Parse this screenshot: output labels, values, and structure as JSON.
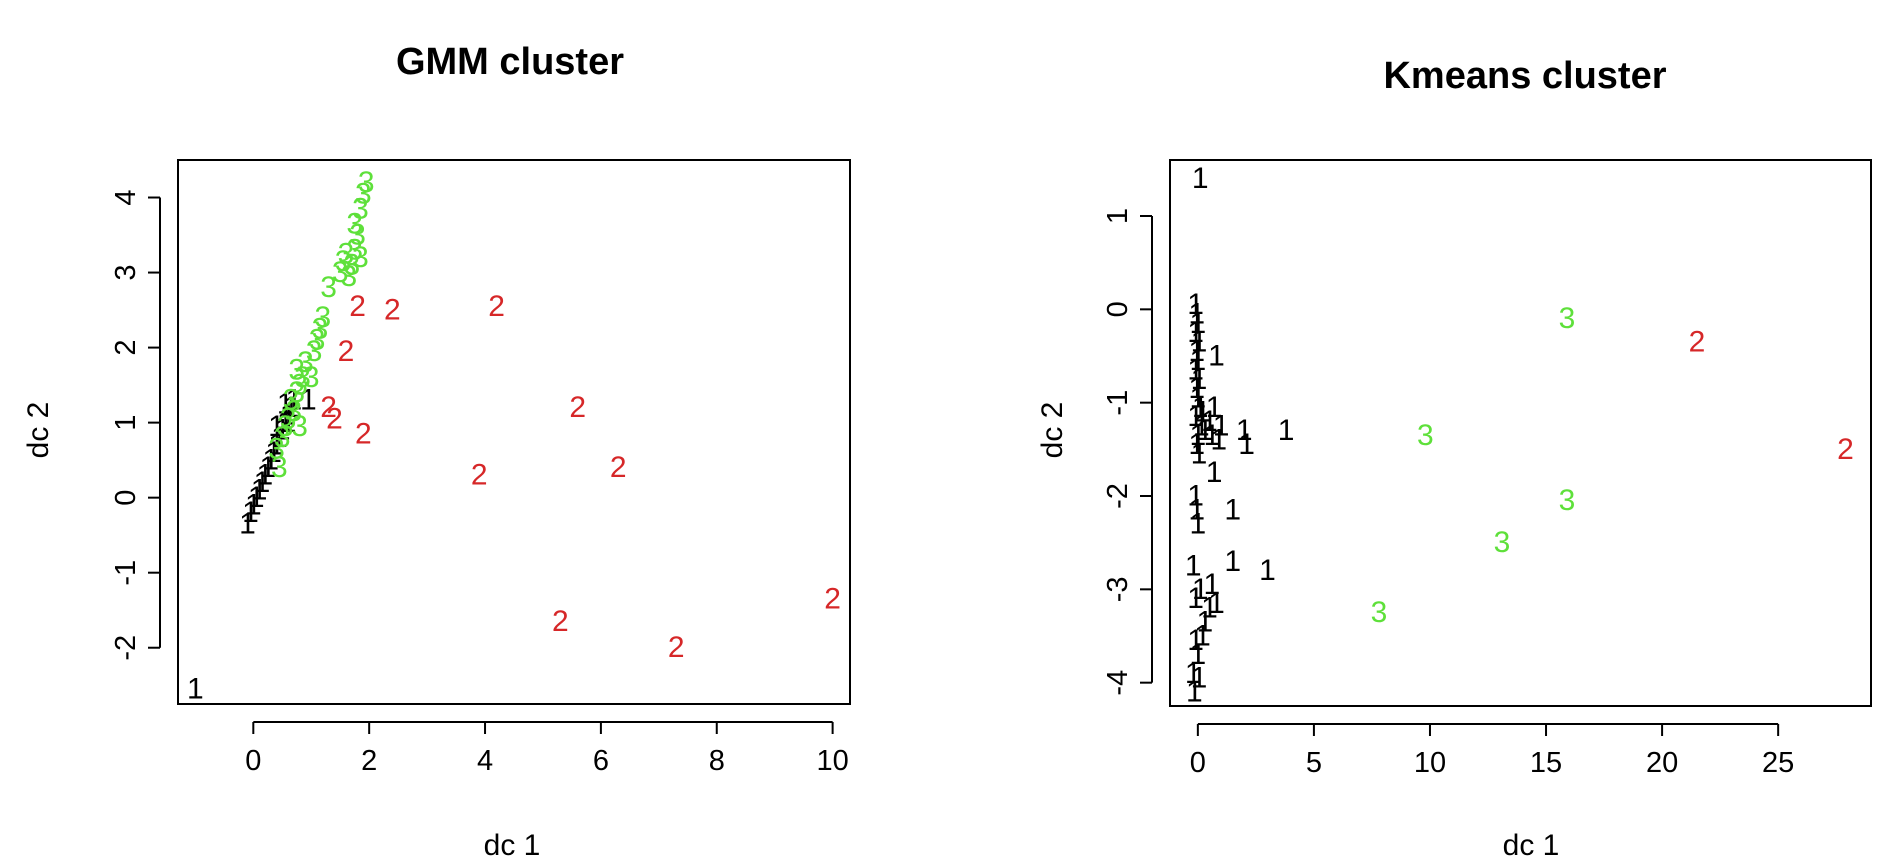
{
  "chart_data": [
    {
      "type": "scatter",
      "title": "GMM cluster",
      "xlabel": "dc 1",
      "ylabel": "dc 2",
      "xlim": [
        -1.3,
        10.3
      ],
      "ylim": [
        -2.75,
        4.5
      ],
      "xticks": [
        0,
        2,
        4,
        6,
        8,
        10
      ],
      "yticks": [
        -2,
        -1,
        0,
        1,
        2,
        3,
        4
      ],
      "colors": {
        "1": "#000000",
        "2": "#d62728",
        "3": "#5ee03a"
      },
      "points": [
        {
          "x": -1.0,
          "y": -2.55,
          "label": "1"
        },
        {
          "x": -0.1,
          "y": -0.35,
          "label": "1"
        },
        {
          "x": -0.05,
          "y": -0.2,
          "label": "1"
        },
        {
          "x": 0.0,
          "y": -0.1,
          "label": "1"
        },
        {
          "x": 0.05,
          "y": 0.0,
          "label": "1"
        },
        {
          "x": 0.1,
          "y": 0.1,
          "label": "1"
        },
        {
          "x": 0.15,
          "y": 0.2,
          "label": "1"
        },
        {
          "x": 0.2,
          "y": 0.3,
          "label": "1"
        },
        {
          "x": 0.25,
          "y": 0.4,
          "label": "1"
        },
        {
          "x": 0.3,
          "y": 0.5,
          "label": "1"
        },
        {
          "x": 0.35,
          "y": 0.6,
          "label": "1"
        },
        {
          "x": 0.4,
          "y": 0.7,
          "label": "1"
        },
        {
          "x": 0.45,
          "y": 0.8,
          "label": "1"
        },
        {
          "x": 0.5,
          "y": 0.9,
          "label": "1"
        },
        {
          "x": 0.55,
          "y": 1.0,
          "label": "1"
        },
        {
          "x": 0.6,
          "y": 1.1,
          "label": "1"
        },
        {
          "x": 0.65,
          "y": 1.2,
          "label": "1"
        },
        {
          "x": 0.7,
          "y": 1.3,
          "label": "1"
        },
        {
          "x": 0.6,
          "y": 1.0,
          "label": "1"
        },
        {
          "x": 0.55,
          "y": 1.25,
          "label": "1"
        },
        {
          "x": 0.4,
          "y": 0.95,
          "label": "1"
        },
        {
          "x": 0.95,
          "y": 1.3,
          "label": "1"
        },
        {
          "x": 0.45,
          "y": 0.4,
          "label": "3"
        },
        {
          "x": 0.4,
          "y": 0.65,
          "label": "3"
        },
        {
          "x": 0.5,
          "y": 0.8,
          "label": "3"
        },
        {
          "x": 0.55,
          "y": 0.95,
          "label": "3"
        },
        {
          "x": 0.6,
          "y": 1.05,
          "label": "3"
        },
        {
          "x": 0.7,
          "y": 1.15,
          "label": "3"
        },
        {
          "x": 0.65,
          "y": 1.3,
          "label": "3"
        },
        {
          "x": 0.75,
          "y": 1.4,
          "label": "3"
        },
        {
          "x": 0.8,
          "y": 1.5,
          "label": "3"
        },
        {
          "x": 0.85,
          "y": 1.6,
          "label": "3"
        },
        {
          "x": 0.75,
          "y": 1.7,
          "label": "3"
        },
        {
          "x": 0.9,
          "y": 1.8,
          "label": "3"
        },
        {
          "x": 0.8,
          "y": 0.95,
          "label": "3"
        },
        {
          "x": 1.0,
          "y": 1.6,
          "label": "3"
        },
        {
          "x": 1.05,
          "y": 1.95,
          "label": "3"
        },
        {
          "x": 1.1,
          "y": 2.1,
          "label": "3"
        },
        {
          "x": 1.15,
          "y": 2.25,
          "label": "3"
        },
        {
          "x": 1.2,
          "y": 2.4,
          "label": "3"
        },
        {
          "x": 1.3,
          "y": 2.8,
          "label": "3"
        },
        {
          "x": 1.5,
          "y": 3.0,
          "label": "3"
        },
        {
          "x": 1.55,
          "y": 3.15,
          "label": "3"
        },
        {
          "x": 1.6,
          "y": 3.25,
          "label": "3"
        },
        {
          "x": 1.7,
          "y": 3.1,
          "label": "3"
        },
        {
          "x": 1.75,
          "y": 3.3,
          "label": "3"
        },
        {
          "x": 1.65,
          "y": 2.95,
          "label": "3"
        },
        {
          "x": 1.8,
          "y": 3.5,
          "label": "3"
        },
        {
          "x": 1.75,
          "y": 3.65,
          "label": "3"
        },
        {
          "x": 1.85,
          "y": 3.85,
          "label": "3"
        },
        {
          "x": 1.9,
          "y": 4.05,
          "label": "3"
        },
        {
          "x": 1.95,
          "y": 4.2,
          "label": "3"
        },
        {
          "x": 1.85,
          "y": 3.2,
          "label": "3"
        },
        {
          "x": 1.8,
          "y": 2.55,
          "label": "2"
        },
        {
          "x": 2.4,
          "y": 2.5,
          "label": "2"
        },
        {
          "x": 4.2,
          "y": 2.55,
          "label": "2"
        },
        {
          "x": 1.6,
          "y": 1.95,
          "label": "2"
        },
        {
          "x": 1.3,
          "y": 1.2,
          "label": "2"
        },
        {
          "x": 1.4,
          "y": 1.05,
          "label": "2"
        },
        {
          "x": 1.9,
          "y": 0.85,
          "label": "2"
        },
        {
          "x": 5.6,
          "y": 1.2,
          "label": "2"
        },
        {
          "x": 3.9,
          "y": 0.3,
          "label": "2"
        },
        {
          "x": 6.3,
          "y": 0.4,
          "label": "2"
        },
        {
          "x": 5.3,
          "y": -1.65,
          "label": "2"
        },
        {
          "x": 7.3,
          "y": -2.0,
          "label": "2"
        },
        {
          "x": 10.0,
          "y": -1.35,
          "label": "2"
        }
      ]
    },
    {
      "type": "scatter",
      "title": "Kmeans cluster",
      "xlabel": "dc 1",
      "ylabel": "dc 2",
      "xlim": [
        -1.2,
        29.0
      ],
      "ylim": [
        -4.25,
        1.6
      ],
      "xticks": [
        0,
        5,
        10,
        15,
        20,
        25
      ],
      "yticks": [
        -4,
        -3,
        -2,
        -1,
        0,
        1
      ],
      "colors": {
        "1": "#000000",
        "2": "#d62728",
        "3": "#5ee03a"
      },
      "points": [
        {
          "x": 0.1,
          "y": 1.4,
          "label": "1"
        },
        {
          "x": -0.1,
          "y": 0.05,
          "label": "1"
        },
        {
          "x": -0.05,
          "y": -0.05,
          "label": "1"
        },
        {
          "x": 0.0,
          "y": -0.15,
          "label": "1"
        },
        {
          "x": -0.1,
          "y": -0.25,
          "label": "1"
        },
        {
          "x": 0.05,
          "y": -0.35,
          "label": "1"
        },
        {
          "x": -0.05,
          "y": -0.45,
          "label": "1"
        },
        {
          "x": 0.0,
          "y": -0.55,
          "label": "1"
        },
        {
          "x": -0.1,
          "y": -0.65,
          "label": "1"
        },
        {
          "x": 0.05,
          "y": -0.75,
          "label": "1"
        },
        {
          "x": -0.05,
          "y": -0.85,
          "label": "1"
        },
        {
          "x": 0.0,
          "y": -0.95,
          "label": "1"
        },
        {
          "x": 0.1,
          "y": -1.05,
          "label": "1"
        },
        {
          "x": -0.1,
          "y": -1.15,
          "label": "1"
        },
        {
          "x": 0.15,
          "y": -1.25,
          "label": "1"
        },
        {
          "x": 0.0,
          "y": -1.35,
          "label": "1"
        },
        {
          "x": -0.05,
          "y": -1.45,
          "label": "1"
        },
        {
          "x": 0.05,
          "y": -1.55,
          "label": "1"
        },
        {
          "x": 0.2,
          "y": -1.1,
          "label": "1"
        },
        {
          "x": 0.3,
          "y": -1.3,
          "label": "1"
        },
        {
          "x": 0.5,
          "y": -1.2,
          "label": "1"
        },
        {
          "x": 0.6,
          "y": -1.35,
          "label": "1"
        },
        {
          "x": 0.7,
          "y": -1.05,
          "label": "1"
        },
        {
          "x": 0.9,
          "y": -1.4,
          "label": "1"
        },
        {
          "x": 1.0,
          "y": -1.25,
          "label": "1"
        },
        {
          "x": 0.8,
          "y": -0.5,
          "label": "1"
        },
        {
          "x": 2.0,
          "y": -1.3,
          "label": "1"
        },
        {
          "x": 2.1,
          "y": -1.45,
          "label": "1"
        },
        {
          "x": 3.8,
          "y": -1.3,
          "label": "1"
        },
        {
          "x": 0.7,
          "y": -1.75,
          "label": "1"
        },
        {
          "x": 1.5,
          "y": -2.15,
          "label": "1"
        },
        {
          "x": -0.1,
          "y": -2.0,
          "label": "1"
        },
        {
          "x": -0.05,
          "y": -2.15,
          "label": "1"
        },
        {
          "x": 0.0,
          "y": -2.3,
          "label": "1"
        },
        {
          "x": 1.5,
          "y": -2.7,
          "label": "1"
        },
        {
          "x": 3.0,
          "y": -2.8,
          "label": "1"
        },
        {
          "x": -0.2,
          "y": -2.75,
          "label": "1"
        },
        {
          "x": 0.6,
          "y": -2.95,
          "label": "1"
        },
        {
          "x": 0.1,
          "y": -3.0,
          "label": "1"
        },
        {
          "x": -0.1,
          "y": -3.1,
          "label": "1"
        },
        {
          "x": 0.5,
          "y": -3.2,
          "label": "1"
        },
        {
          "x": 0.8,
          "y": -3.15,
          "label": "1"
        },
        {
          "x": 0.3,
          "y": -3.35,
          "label": "1"
        },
        {
          "x": -0.1,
          "y": -3.55,
          "label": "1"
        },
        {
          "x": 0.2,
          "y": -3.5,
          "label": "1"
        },
        {
          "x": 0.0,
          "y": -3.7,
          "label": "1"
        },
        {
          "x": -0.2,
          "y": -3.9,
          "label": "1"
        },
        {
          "x": 0.05,
          "y": -3.95,
          "label": "1"
        },
        {
          "x": -0.15,
          "y": -4.1,
          "label": "1"
        },
        {
          "x": 15.9,
          "y": -0.1,
          "label": "3"
        },
        {
          "x": 9.8,
          "y": -1.35,
          "label": "3"
        },
        {
          "x": 15.9,
          "y": -2.05,
          "label": "3"
        },
        {
          "x": 13.1,
          "y": -2.5,
          "label": "3"
        },
        {
          "x": 7.8,
          "y": -3.25,
          "label": "3"
        },
        {
          "x": 21.5,
          "y": -0.35,
          "label": "2"
        },
        {
          "x": 27.9,
          "y": -1.5,
          "label": "2"
        }
      ]
    }
  ]
}
